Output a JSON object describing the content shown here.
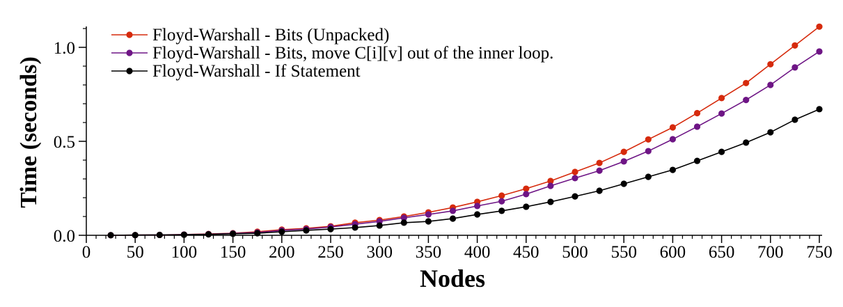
{
  "chart_data": {
    "type": "line",
    "xlabel": "Nodes",
    "ylabel": "Time (seconds)",
    "xlim": [
      0,
      750
    ],
    "ylim": [
      0,
      1.1
    ],
    "xticks": [
      0,
      50,
      100,
      150,
      200,
      250,
      300,
      350,
      400,
      450,
      500,
      550,
      600,
      650,
      700,
      750
    ],
    "yticks": [
      0.0,
      0.5,
      1.0
    ],
    "ytick_labels": [
      "0.0",
      "0.5",
      "1.0"
    ],
    "legend_position": "top-left",
    "grid": false,
    "x": [
      25,
      50,
      75,
      100,
      125,
      150,
      175,
      200,
      225,
      250,
      275,
      300,
      325,
      350,
      375,
      400,
      425,
      450,
      475,
      500,
      525,
      550,
      575,
      600,
      625,
      650,
      675,
      700,
      725,
      750
    ],
    "series": [
      {
        "name": "Floyd-Warshall - Bits (Unpacked)",
        "color": "#d62a0c",
        "values": [
          0.0005,
          0.001,
          0.002,
          0.004,
          0.007,
          0.011,
          0.019,
          0.03,
          0.037,
          0.048,
          0.067,
          0.081,
          0.1,
          0.122,
          0.148,
          0.178,
          0.211,
          0.248,
          0.289,
          0.337,
          0.385,
          0.444,
          0.51,
          0.574,
          0.65,
          0.73,
          0.81,
          0.91,
          1.01,
          1.11
        ]
      },
      {
        "name": "Floyd-Warshall - Bits, move C[i][v] out of the inner loop.",
        "color": "#6e1585",
        "values": [
          0.0005,
          0.001,
          0.002,
          0.004,
          0.006,
          0.01,
          0.015,
          0.026,
          0.033,
          0.044,
          0.059,
          0.074,
          0.093,
          0.111,
          0.13,
          0.156,
          0.181,
          0.219,
          0.263,
          0.304,
          0.344,
          0.393,
          0.448,
          0.511,
          0.578,
          0.648,
          0.72,
          0.8,
          0.893,
          0.978
        ]
      },
      {
        "name": "Floyd-Warshall - If Statement",
        "color": "#000000",
        "values": [
          0.0005,
          0.001,
          0.002,
          0.003,
          0.005,
          0.008,
          0.011,
          0.019,
          0.026,
          0.033,
          0.041,
          0.052,
          0.067,
          0.074,
          0.089,
          0.111,
          0.13,
          0.152,
          0.178,
          0.207,
          0.237,
          0.274,
          0.311,
          0.348,
          0.396,
          0.444,
          0.493,
          0.548,
          0.615,
          0.671
        ]
      }
    ]
  }
}
